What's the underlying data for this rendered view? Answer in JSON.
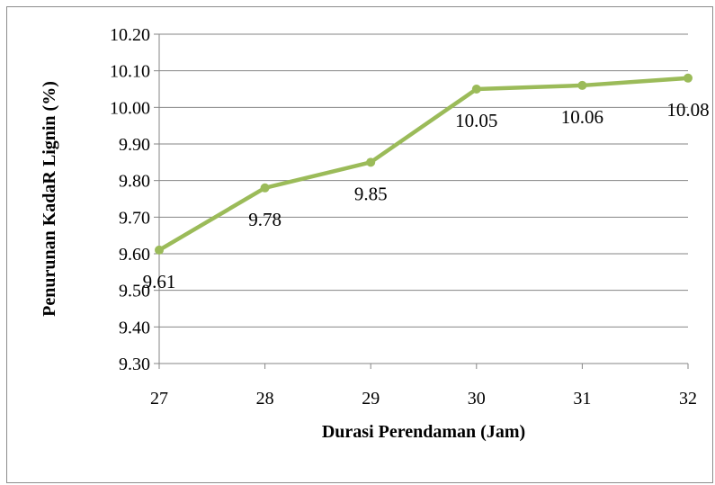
{
  "chart_data": {
    "type": "line",
    "title": "",
    "xlabel": "Durasi Perendaman (Jam)",
    "ylabel": "Penurunan KadaR Lignin (%)",
    "x": [
      27,
      28,
      29,
      30,
      31,
      32
    ],
    "x_tick_labels": [
      "27",
      "28",
      "29",
      "30",
      "31",
      "32"
    ],
    "ylim": [
      9.3,
      10.2
    ],
    "y_ticks": [
      9.3,
      9.4,
      9.5,
      9.6,
      9.7,
      9.8,
      9.9,
      10.0,
      10.1,
      10.2
    ],
    "y_tick_labels": [
      "9.30",
      "9.40",
      "9.50",
      "9.60",
      "9.70",
      "9.80",
      "9.90",
      "10.00",
      "10.10",
      "10.20"
    ],
    "series": [
      {
        "values": [
          9.61,
          9.78,
          9.85,
          10.05,
          10.06,
          10.08
        ],
        "data_labels": [
          "9.61",
          "9.78",
          "9.85",
          "10.05",
          "10.06",
          "10.08"
        ],
        "color": "#9bbb59"
      }
    ],
    "grid": "horizontal",
    "legend": "none"
  }
}
